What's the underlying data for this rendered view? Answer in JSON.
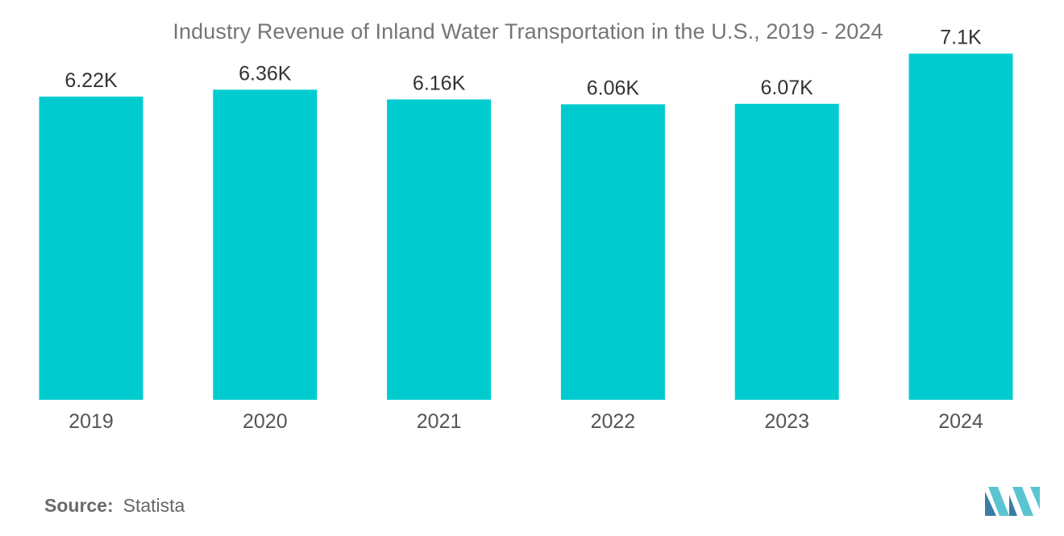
{
  "chart_data": {
    "type": "bar",
    "title": "Industry Revenue of Inland Water Transportation in the U.S., 2019 - 2024",
    "categories": [
      "2019",
      "2020",
      "2021",
      "2022",
      "2023",
      "2024"
    ],
    "values": [
      6.22,
      6.36,
      6.16,
      6.06,
      6.07,
      7.1
    ],
    "value_labels": [
      "6.22K",
      "6.36K",
      "6.16K",
      "6.06K",
      "6.07K",
      "7.1K"
    ],
    "xlabel": "",
    "ylabel": "",
    "ylim": [
      0,
      8.2
    ],
    "grid": false,
    "bar_color": "#00cccf"
  },
  "source": {
    "label": "Source:",
    "value": "Statista"
  },
  "colors": {
    "logo_dark": "#3a7ca5",
    "logo_light": "#5bc4d1"
  },
  "logo": {
    "icon": "mordor-intelligence-logo-icon"
  }
}
